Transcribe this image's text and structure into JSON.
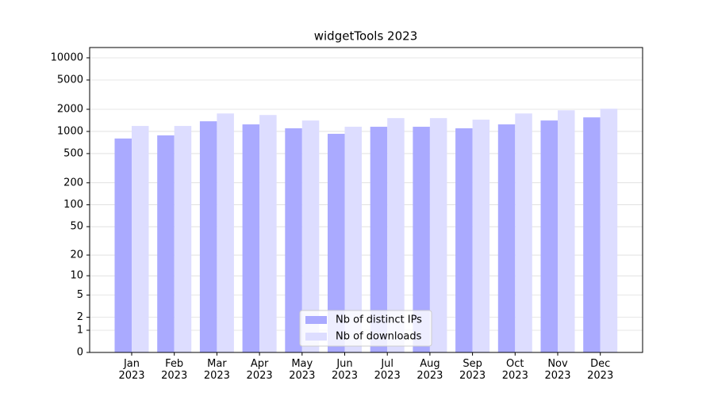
{
  "chart_data": {
    "type": "bar",
    "title": "widgetTools 2023",
    "categories": [
      "Jan\n2023",
      "Feb\n2023",
      "Mar\n2023",
      "Apr\n2023",
      "May\n2023",
      "Jun\n2023",
      "Jul\n2023",
      "Aug\n2023",
      "Sep\n2023",
      "Oct\n2023",
      "Nov\n2023",
      "Dec\n2023"
    ],
    "series": [
      {
        "name": "Nb of distinct IPs",
        "color": "#aaaaff",
        "values": [
          802,
          885,
          1375,
          1247,
          1103,
          929,
          1158,
          1158,
          1103,
          1247,
          1409,
          1553
        ]
      },
      {
        "name": "Nb of downloads",
        "color": "#ddddff",
        "values": [
          1187,
          1187,
          1756,
          1672,
          1409,
          1158,
          1517,
          1517,
          1445,
          1756,
          1937,
          2036
        ]
      }
    ],
    "yscale": "log1p",
    "ylim": [
      0,
      13800
    ],
    "yticks": [
      0,
      1,
      2,
      5,
      10,
      20,
      50,
      100,
      200,
      500,
      1000,
      2000,
      5000,
      10000
    ],
    "grid": true,
    "legend": "lower center"
  }
}
